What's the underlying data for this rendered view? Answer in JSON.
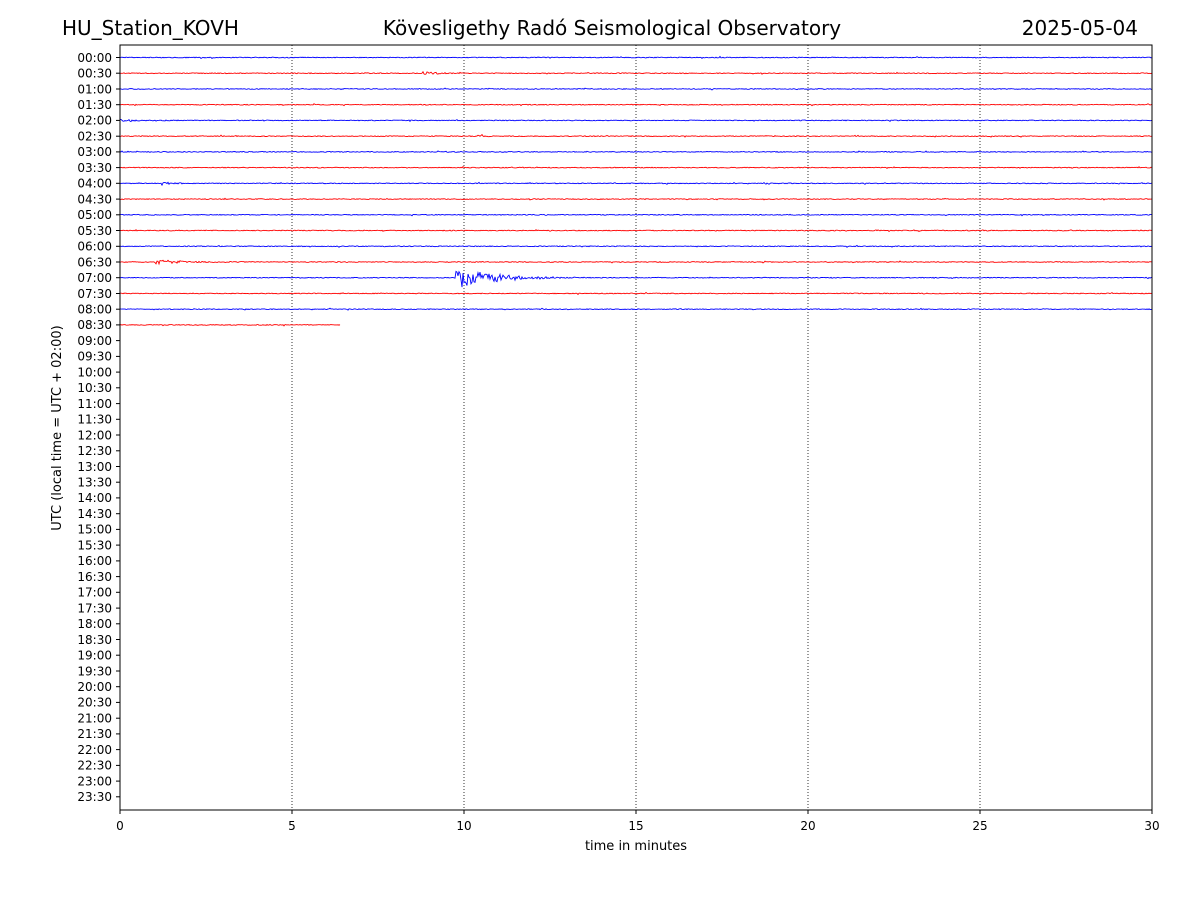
{
  "header": {
    "station": "HU_Station_KOVH",
    "observatory": "Kövesligethy Radó Seismological Observatory",
    "date": "2025-05-04"
  },
  "chart_data": {
    "type": "line",
    "xlabel": "time in minutes",
    "ylabel": "UTC (local time = UTC + 02:00)",
    "xlim": [
      0,
      30
    ],
    "x_ticks": [
      "0",
      "5",
      "10",
      "15",
      "20",
      "25",
      "30"
    ],
    "x_tick_values": [
      0,
      5,
      10,
      15,
      20,
      25,
      30
    ],
    "grid": "vertical dotted at x ticks",
    "colors": {
      "even_rows": "#0000ff",
      "odd_rows": "#ff0000",
      "grid": "#000000"
    },
    "row_labels": [
      "00:00",
      "00:30",
      "01:00",
      "01:30",
      "02:00",
      "02:30",
      "03:00",
      "03:30",
      "04:00",
      "04:30",
      "05:00",
      "05:30",
      "06:00",
      "06:30",
      "07:00",
      "07:30",
      "08:00",
      "08:30",
      "09:00",
      "09:30",
      "10:00",
      "10:30",
      "11:00",
      "11:30",
      "12:00",
      "12:30",
      "13:00",
      "13:30",
      "14:00",
      "14:30",
      "15:00",
      "15:30",
      "16:00",
      "16:30",
      "17:00",
      "17:30",
      "18:00",
      "18:30",
      "19:00",
      "19:30",
      "20:00",
      "20:30",
      "21:00",
      "21:30",
      "22:00",
      "22:30",
      "23:00",
      "23:30"
    ],
    "traces": [
      {
        "row": "00:00",
        "end_minute": 30,
        "events": []
      },
      {
        "row": "00:30",
        "end_minute": 30,
        "events": [
          {
            "start": 8.8,
            "duration": 0.9,
            "amplitude": 0.5
          }
        ]
      },
      {
        "row": "01:00",
        "end_minute": 30,
        "events": []
      },
      {
        "row": "01:30",
        "end_minute": 30,
        "events": [
          {
            "start": 29.85,
            "duration": 0.15,
            "amplitude": 0.25
          }
        ]
      },
      {
        "row": "02:00",
        "end_minute": 30,
        "events": [
          {
            "start": 0,
            "duration": 2.5,
            "amplitude": 0.18
          }
        ]
      },
      {
        "row": "02:30",
        "end_minute": 30,
        "events": [
          {
            "start": 10.4,
            "duration": 1.2,
            "amplitude": 0.15
          }
        ]
      },
      {
        "row": "03:00",
        "end_minute": 30,
        "events": []
      },
      {
        "row": "03:30",
        "end_minute": 30,
        "events": []
      },
      {
        "row": "04:00",
        "end_minute": 30,
        "events": [
          {
            "start": 1.2,
            "duration": 0.9,
            "amplitude": 0.25
          }
        ]
      },
      {
        "row": "04:30",
        "end_minute": 30,
        "events": []
      },
      {
        "row": "05:00",
        "end_minute": 30,
        "events": []
      },
      {
        "row": "05:30",
        "end_minute": 30,
        "events": []
      },
      {
        "row": "06:00",
        "end_minute": 30,
        "events": []
      },
      {
        "row": "06:30",
        "end_minute": 30,
        "events": [
          {
            "start": 1.0,
            "duration": 3.5,
            "amplitude": 0.3
          }
        ]
      },
      {
        "row": "07:00",
        "end_minute": 30,
        "events": [
          {
            "start": 9.75,
            "duration": 3.5,
            "amplitude": 1.6
          }
        ]
      },
      {
        "row": "07:30",
        "end_minute": 30,
        "events": []
      },
      {
        "row": "08:00",
        "end_minute": 30,
        "events": []
      },
      {
        "row": "08:30",
        "end_minute": 6.4,
        "events": []
      }
    ]
  }
}
